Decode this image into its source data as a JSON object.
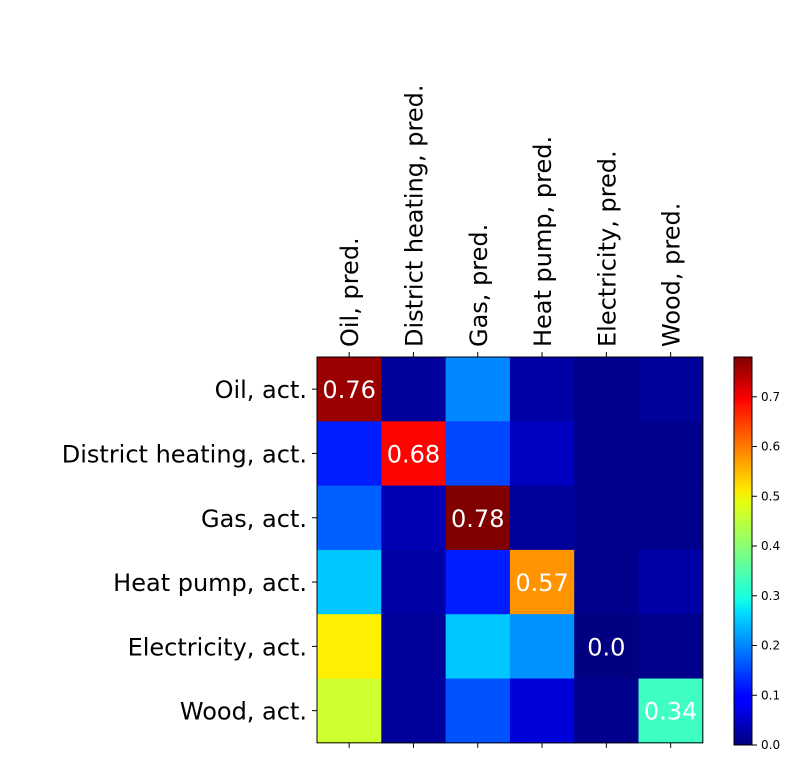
{
  "chart_data": {
    "type": "heatmap",
    "title": "",
    "xlabel": "",
    "ylabel": "",
    "x_categories": [
      "Oil, pred.",
      "District heating, pred.",
      "Gas, pred.",
      "Heat pump, pred.",
      "Electricity, pred.",
      "Wood, pred."
    ],
    "y_categories": [
      "Oil, act.",
      "District heating, act.",
      "Gas, act.",
      "Heat pump, act.",
      "Electricity, act.",
      "Wood, act."
    ],
    "values": [
      [
        0.76,
        0.02,
        0.2,
        0.03,
        0.01,
        0.02
      ],
      [
        0.12,
        0.68,
        0.15,
        0.05,
        0.01,
        0.01
      ],
      [
        0.17,
        0.04,
        0.78,
        0.02,
        0.01,
        0.01
      ],
      [
        0.25,
        0.03,
        0.12,
        0.57,
        0.01,
        0.03
      ],
      [
        0.5,
        0.02,
        0.25,
        0.21,
        0.0,
        0.01
      ],
      [
        0.45,
        0.02,
        0.16,
        0.07,
        0.01,
        0.34
      ]
    ],
    "annotations": [
      {
        "row": 0,
        "col": 0,
        "text": "0.76",
        "color": "#ffffff"
      },
      {
        "row": 1,
        "col": 1,
        "text": "0.68",
        "color": "#ffffff"
      },
      {
        "row": 2,
        "col": 2,
        "text": "0.78",
        "color": "#ffffff"
      },
      {
        "row": 3,
        "col": 3,
        "text": "0.57",
        "color": "#ffffff"
      },
      {
        "row": 4,
        "col": 4,
        "text": "0.0",
        "color": "#ffffff"
      },
      {
        "row": 5,
        "col": 5,
        "text": "0.34",
        "color": "#ffffff"
      }
    ],
    "colormap": "jet",
    "vmin": 0.0,
    "vmax": 0.78,
    "colorbar": {
      "ticks": [
        0.0,
        0.1,
        0.2,
        0.3,
        0.4,
        0.5,
        0.6,
        0.7
      ],
      "tick_labels": [
        "0.0",
        "0.1",
        "0.2",
        "0.3",
        "0.4",
        "0.5",
        "0.6",
        "0.7"
      ]
    },
    "grid": false,
    "x_tick_position": "top",
    "x_tick_rotation": 90
  }
}
